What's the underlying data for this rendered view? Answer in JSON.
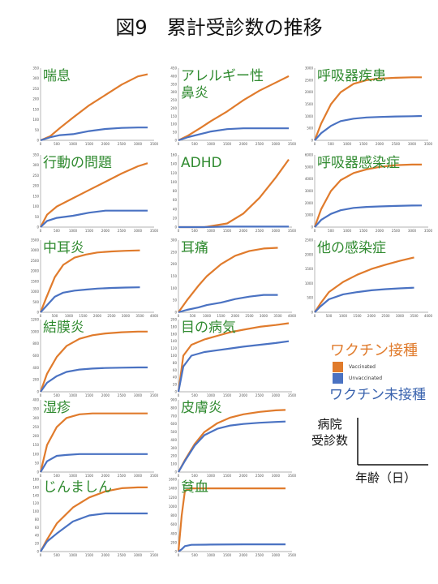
{
  "page_title": "図9　累計受診数の推移",
  "legend": {
    "vaccinated_label": "ワクチン接種",
    "unvaccinated_label": "ワクチン未接種",
    "vaccinated_key": "Vaccinated",
    "unvaccinated_key": "Unvaccinated",
    "axis_y_label": "病院\n受診数",
    "axis_x_label": "年齢（日）"
  },
  "colors": {
    "vaccinated": "#e07b2c",
    "unvaccinated": "#4a72c2",
    "title": "#2f8a2f"
  },
  "chart_data": [
    {
      "type": "line",
      "title": "喘息",
      "xlim": [
        0,
        3500
      ],
      "ylim": [
        0,
        350
      ],
      "xticks": [
        0,
        500,
        1000,
        1500,
        2000,
        2500,
        3000,
        3500
      ],
      "yticks": [
        0,
        50,
        100,
        150,
        200,
        250,
        300,
        350
      ],
      "series": [
        {
          "name": "Vaccinated",
          "x": [
            0,
            300,
            600,
            1000,
            1500,
            2000,
            2500,
            3000,
            3300
          ],
          "y": [
            0,
            20,
            60,
            110,
            170,
            220,
            270,
            310,
            320
          ]
        },
        {
          "name": "Unvaccinated",
          "x": [
            0,
            300,
            600,
            1000,
            1500,
            2000,
            2500,
            3000,
            3300
          ],
          "y": [
            0,
            15,
            25,
            30,
            45,
            55,
            60,
            62,
            62
          ]
        }
      ]
    },
    {
      "type": "line",
      "title": "アレルギー性\n鼻炎",
      "xlim": [
        0,
        3500
      ],
      "ylim": [
        0,
        450
      ],
      "xticks": [
        0,
        500,
        1000,
        1500,
        2000,
        2500,
        3000,
        3500
      ],
      "yticks": [
        0,
        50,
        100,
        150,
        200,
        250,
        300,
        350,
        400,
        450
      ],
      "series": [
        {
          "name": "Vaccinated",
          "x": [
            0,
            300,
            700,
            1000,
            1500,
            2000,
            2500,
            3000,
            3400
          ],
          "y": [
            0,
            30,
            80,
            120,
            180,
            250,
            310,
            360,
            400
          ]
        },
        {
          "name": "Unvaccinated",
          "x": [
            0,
            300,
            700,
            1000,
            1500,
            2000,
            2500,
            3000,
            3400
          ],
          "y": [
            0,
            20,
            40,
            55,
            70,
            75,
            75,
            75,
            75
          ]
        }
      ]
    },
    {
      "type": "line",
      "title": "呼吸器疾患",
      "xlim": [
        0,
        3500
      ],
      "ylim": [
        0,
        3000
      ],
      "xticks": [
        0,
        500,
        1000,
        1500,
        2000,
        2500,
        3000,
        3500
      ],
      "yticks": [
        0,
        500,
        1000,
        1500,
        2000,
        2500,
        3000
      ],
      "series": [
        {
          "name": "Vaccinated",
          "x": [
            0,
            200,
            500,
            800,
            1200,
            1600,
            2000,
            2500,
            3000,
            3300
          ],
          "y": [
            0,
            700,
            1500,
            2000,
            2350,
            2500,
            2570,
            2600,
            2620,
            2620
          ]
        },
        {
          "name": "Unvaccinated",
          "x": [
            0,
            200,
            500,
            800,
            1200,
            1600,
            2000,
            2500,
            3000,
            3300
          ],
          "y": [
            0,
            300,
            600,
            800,
            900,
            950,
            970,
            990,
            1000,
            1010
          ]
        }
      ]
    },
    {
      "type": "line",
      "title": "行動の問題",
      "xlim": [
        0,
        3500
      ],
      "ylim": [
        0,
        350
      ],
      "xticks": [
        0,
        500,
        1000,
        1500,
        2000,
        2500,
        3000,
        3500
      ],
      "yticks": [
        0,
        50,
        100,
        150,
        200,
        250,
        300,
        350
      ],
      "series": [
        {
          "name": "Vaccinated",
          "x": [
            0,
            200,
            500,
            1000,
            1500,
            2000,
            2500,
            3000,
            3300
          ],
          "y": [
            0,
            60,
            100,
            140,
            180,
            220,
            260,
            295,
            310
          ]
        },
        {
          "name": "Unvaccinated",
          "x": [
            0,
            200,
            500,
            1000,
            1500,
            2000,
            2500,
            3000,
            3300
          ],
          "y": [
            0,
            30,
            45,
            55,
            70,
            80,
            80,
            80,
            80
          ]
        }
      ]
    },
    {
      "type": "line",
      "title": "ADHD",
      "xlim": [
        0,
        3500
      ],
      "ylim": [
        0,
        160
      ],
      "xticks": [
        0,
        500,
        1000,
        1500,
        2000,
        2500,
        3000,
        3500
      ],
      "yticks": [
        0,
        20,
        40,
        60,
        80,
        100,
        120,
        140,
        160
      ],
      "series": [
        {
          "name": "Vaccinated",
          "x": [
            0,
            800,
            1500,
            2000,
            2500,
            3000,
            3400
          ],
          "y": [
            0,
            0,
            8,
            30,
            65,
            110,
            150
          ]
        },
        {
          "name": "Unvaccinated",
          "x": [
            0,
            800,
            1500,
            2000,
            2500,
            3000,
            3400
          ],
          "y": [
            0,
            0,
            1,
            1,
            1,
            1,
            1
          ]
        }
      ]
    },
    {
      "type": "line",
      "title": "呼吸器感染症",
      "xlim": [
        0,
        3500
      ],
      "ylim": [
        0,
        6000
      ],
      "xticks": [
        0,
        500,
        1000,
        1500,
        2000,
        2500,
        3000,
        3500
      ],
      "yticks": [
        0,
        1000,
        2000,
        3000,
        4000,
        5000,
        6000
      ],
      "series": [
        {
          "name": "Vaccinated",
          "x": [
            0,
            200,
            500,
            800,
            1200,
            1600,
            2000,
            2500,
            3000,
            3300
          ],
          "y": [
            0,
            1500,
            3000,
            3900,
            4500,
            4800,
            5000,
            5150,
            5200,
            5200
          ]
        },
        {
          "name": "Unvaccinated",
          "x": [
            0,
            200,
            500,
            800,
            1200,
            1600,
            2000,
            2500,
            3000,
            3300
          ],
          "y": [
            0,
            600,
            1100,
            1400,
            1600,
            1680,
            1720,
            1760,
            1790,
            1800
          ]
        }
      ]
    },
    {
      "type": "line",
      "title": "中耳炎",
      "xlim": [
        0,
        4000
      ],
      "ylim": [
        0,
        3500
      ],
      "xticks": [
        0,
        500,
        1000,
        1500,
        2000,
        2500,
        3000,
        3500,
        4000
      ],
      "yticks": [
        0,
        500,
        1000,
        1500,
        2000,
        2500,
        3000,
        3500
      ],
      "series": [
        {
          "name": "Vaccinated",
          "x": [
            0,
            200,
            500,
            800,
            1200,
            1600,
            2000,
            2500,
            3000,
            3500
          ],
          "y": [
            0,
            700,
            1700,
            2300,
            2650,
            2800,
            2900,
            2950,
            2980,
            3000
          ]
        },
        {
          "name": "Unvaccinated",
          "x": [
            0,
            200,
            500,
            800,
            1200,
            1600,
            2000,
            2500,
            3000,
            3500
          ],
          "y": [
            0,
            300,
            750,
            950,
            1050,
            1100,
            1150,
            1180,
            1200,
            1210
          ]
        }
      ]
    },
    {
      "type": "line",
      "title": "耳痛",
      "xlim": [
        0,
        4000
      ],
      "ylim": [
        0,
        300
      ],
      "xticks": [
        0,
        500,
        1000,
        1500,
        2000,
        2500,
        3000,
        3500,
        4000
      ],
      "yticks": [
        0,
        50,
        100,
        150,
        200,
        250,
        300
      ],
      "series": [
        {
          "name": "Vaccinated",
          "x": [
            0,
            300,
            700,
            1000,
            1500,
            2000,
            2500,
            3000,
            3500
          ],
          "y": [
            0,
            50,
            110,
            150,
            200,
            235,
            255,
            265,
            268
          ]
        },
        {
          "name": "Unvaccinated",
          "x": [
            0,
            300,
            700,
            1000,
            1500,
            2000,
            2500,
            3000,
            3500
          ],
          "y": [
            0,
            10,
            20,
            30,
            40,
            55,
            65,
            72,
            72
          ]
        }
      ]
    },
    {
      "type": "line",
      "title": "他の感染症",
      "xlim": [
        0,
        4000
      ],
      "ylim": [
        0,
        2500
      ],
      "xticks": [
        0,
        500,
        1000,
        1500,
        2000,
        2500,
        3000,
        3500,
        4000
      ],
      "yticks": [
        0,
        500,
        1000,
        1500,
        2000,
        2500
      ],
      "series": [
        {
          "name": "Vaccinated",
          "x": [
            0,
            200,
            500,
            1000,
            1500,
            2000,
            2500,
            3000,
            3500
          ],
          "y": [
            0,
            300,
            700,
            1050,
            1300,
            1500,
            1650,
            1780,
            1900
          ]
        },
        {
          "name": "Unvaccinated",
          "x": [
            0,
            200,
            500,
            1000,
            1500,
            2000,
            2500,
            3000,
            3500
          ],
          "y": [
            0,
            200,
            450,
            620,
            700,
            760,
            800,
            830,
            850
          ]
        }
      ]
    },
    {
      "type": "line",
      "title": "結膜炎",
      "xlim": [
        0,
        3500
      ],
      "ylim": [
        0,
        1200
      ],
      "xticks": [
        0,
        500,
        1000,
        1500,
        2000,
        2500,
        3000,
        3500
      ],
      "yticks": [
        0,
        200,
        400,
        600,
        800,
        1000,
        1200
      ],
      "series": [
        {
          "name": "Vaccinated",
          "x": [
            0,
            200,
            500,
            800,
            1200,
            1600,
            2000,
            2500,
            3000,
            3300
          ],
          "y": [
            0,
            300,
            580,
            760,
            880,
            940,
            970,
            990,
            1000,
            1000
          ]
        },
        {
          "name": "Unvaccinated",
          "x": [
            0,
            200,
            500,
            800,
            1200,
            1600,
            2000,
            2500,
            3000,
            3300
          ],
          "y": [
            0,
            150,
            260,
            330,
            370,
            385,
            395,
            400,
            405,
            405
          ]
        }
      ]
    },
    {
      "type": "line",
      "title": "目の病気",
      "xlim": [
        0,
        3500
      ],
      "ylim": [
        0,
        200
      ],
      "xticks": [
        0,
        500,
        1000,
        1500,
        2000,
        2500,
        3000,
        3500
      ],
      "yticks": [
        0,
        20,
        40,
        60,
        80,
        100,
        120,
        140,
        160,
        180,
        200
      ],
      "series": [
        {
          "name": "Vaccinated",
          "x": [
            0,
            150,
            400,
            800,
            1200,
            1600,
            2000,
            2500,
            3000,
            3400
          ],
          "y": [
            0,
            100,
            130,
            145,
            155,
            165,
            172,
            180,
            185,
            190
          ]
        },
        {
          "name": "Unvaccinated",
          "x": [
            0,
            150,
            400,
            800,
            1200,
            1600,
            2000,
            2500,
            3000,
            3400
          ],
          "y": [
            0,
            70,
            100,
            110,
            115,
            120,
            125,
            130,
            135,
            140
          ]
        }
      ]
    },
    {
      "type": "line",
      "title": "湿疹",
      "xlim": [
        0,
        3500
      ],
      "ylim": [
        0,
        400
      ],
      "xticks": [
        0,
        500,
        1000,
        1500,
        2000,
        2500,
        3000,
        3500
      ],
      "yticks": [
        0,
        50,
        100,
        150,
        200,
        250,
        300,
        350,
        400
      ],
      "series": [
        {
          "name": "Vaccinated",
          "x": [
            0,
            200,
            500,
            800,
            1200,
            1600,
            2000,
            2500,
            3000,
            3300
          ],
          "y": [
            0,
            150,
            250,
            300,
            320,
            325,
            325,
            325,
            325,
            325
          ]
        },
        {
          "name": "Unvaccinated",
          "x": [
            0,
            200,
            500,
            800,
            1200,
            1600,
            2000,
            2500,
            3000,
            3300
          ],
          "y": [
            0,
            60,
            90,
            95,
            100,
            100,
            100,
            100,
            100,
            100
          ]
        }
      ]
    },
    {
      "type": "line",
      "title": "皮膚炎",
      "xlim": [
        0,
        3500
      ],
      "ylim": [
        0,
        900
      ],
      "xticks": [
        0,
        500,
        1000,
        1500,
        2000,
        2500,
        3000,
        3500
      ],
      "yticks": [
        0,
        100,
        200,
        300,
        400,
        500,
        600,
        700,
        800,
        900
      ],
      "series": [
        {
          "name": "Vaccinated",
          "x": [
            0,
            200,
            500,
            800,
            1200,
            1600,
            2000,
            2500,
            3000,
            3300
          ],
          "y": [
            0,
            150,
            350,
            500,
            610,
            680,
            720,
            750,
            770,
            775
          ]
        },
        {
          "name": "Unvaccinated",
          "x": [
            0,
            200,
            500,
            800,
            1200,
            1600,
            2000,
            2500,
            3000,
            3300
          ],
          "y": [
            0,
            140,
            330,
            460,
            540,
            580,
            600,
            615,
            625,
            630
          ]
        }
      ]
    },
    {
      "type": "line",
      "title": "じんましん",
      "xlim": [
        0,
        3500
      ],
      "ylim": [
        0,
        180
      ],
      "xticks": [
        0,
        500,
        1000,
        1500,
        2000,
        2500,
        3000,
        3500
      ],
      "yticks": [
        0,
        20,
        40,
        60,
        80,
        100,
        120,
        140,
        160,
        180
      ],
      "series": [
        {
          "name": "Vaccinated",
          "x": [
            0,
            200,
            500,
            1000,
            1500,
            2000,
            2500,
            3000,
            3300
          ],
          "y": [
            0,
            30,
            70,
            110,
            135,
            150,
            158,
            160,
            160
          ]
        },
        {
          "name": "Unvaccinated",
          "x": [
            0,
            200,
            500,
            1000,
            1500,
            2000,
            2500,
            3000,
            3300
          ],
          "y": [
            0,
            25,
            45,
            75,
            90,
            95,
            95,
            95,
            95
          ]
        }
      ]
    },
    {
      "type": "line",
      "title": "貧血",
      "xlim": [
        0,
        3500
      ],
      "ylim": [
        0,
        1600
      ],
      "xticks": [
        0,
        500,
        1000,
        1500,
        2000,
        2500,
        3000,
        3500
      ],
      "yticks": [
        0,
        200,
        400,
        600,
        800,
        1000,
        1200,
        1400,
        1600
      ],
      "series": [
        {
          "name": "Vaccinated",
          "x": [
            0,
            100,
            200,
            400,
            1000,
            2000,
            3000,
            3300
          ],
          "y": [
            0,
            800,
            1350,
            1400,
            1400,
            1400,
            1400,
            1400
          ]
        },
        {
          "name": "Unvaccinated",
          "x": [
            0,
            100,
            200,
            400,
            1000,
            2000,
            3000,
            3300
          ],
          "y": [
            0,
            50,
            120,
            150,
            155,
            160,
            160,
            160
          ]
        }
      ]
    }
  ]
}
